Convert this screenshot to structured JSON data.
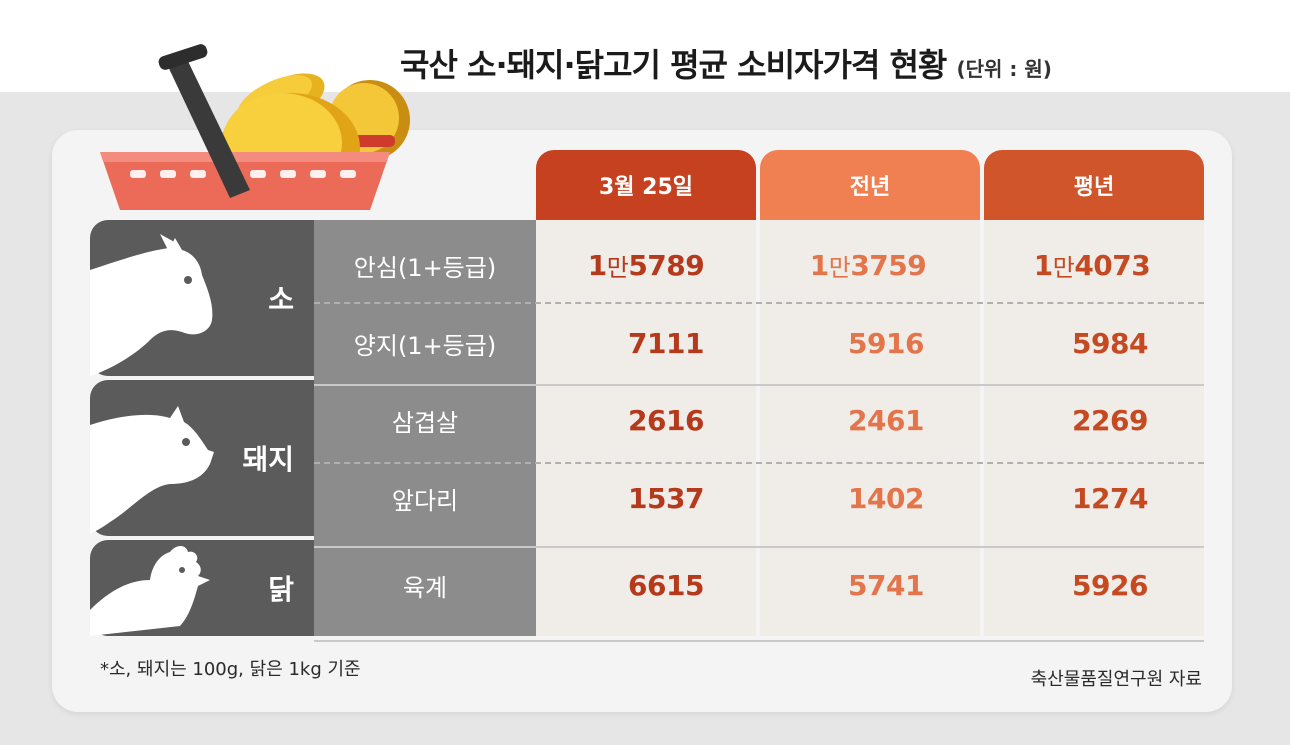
{
  "title": "국산 소·돼지·닭고기 평균 소비자가격 현황",
  "unit": "(단위 : 원)",
  "colors": {
    "today": "#c5411f",
    "prev": "#f07f52",
    "avg": "#d0552a",
    "category": "#5b5b5b",
    "item": "#8c8c8c"
  },
  "chart_data": {
    "type": "table",
    "columns": [
      "3월 25일",
      "전년",
      "평년"
    ],
    "groups": [
      {
        "category": "소",
        "icon": "cow-icon",
        "rows": [
          {
            "item": "안심(1+등급)",
            "values": [
              "1만5789",
              "1만3759",
              "1만4073"
            ]
          },
          {
            "item": "양지(1+등급)",
            "values": [
              "7111",
              "5916",
              "5984"
            ]
          }
        ]
      },
      {
        "category": "돼지",
        "icon": "pig-icon",
        "rows": [
          {
            "item": "삼겹살",
            "values": [
              "2616",
              "2461",
              "2269"
            ]
          },
          {
            "item": "앞다리",
            "values": [
              "1537",
              "1402",
              "1274"
            ]
          }
        ]
      },
      {
        "category": "닭",
        "icon": "chicken-icon",
        "rows": [
          {
            "item": "육계",
            "values": [
              "6615",
              "5741",
              "5926"
            ]
          }
        ]
      }
    ]
  },
  "footnote": "*소, 돼지는 100g, 닭은 1kg 기준",
  "source": "축산물품질연구원 자료"
}
